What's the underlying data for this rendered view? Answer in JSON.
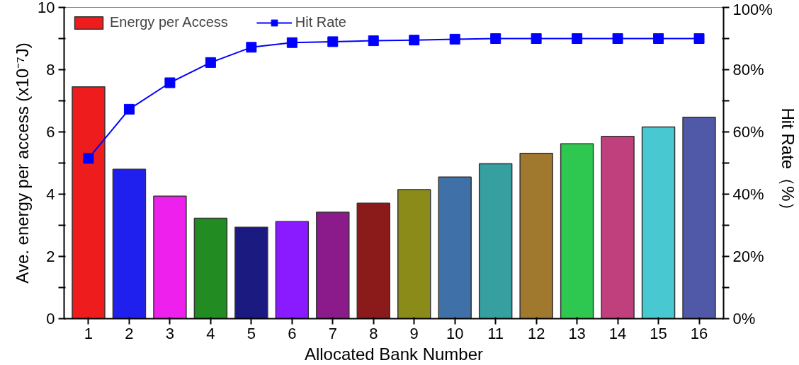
{
  "chart_data": {
    "type": "bar",
    "x": [
      1,
      2,
      3,
      4,
      5,
      6,
      7,
      8,
      9,
      10,
      11,
      12,
      13,
      14,
      15,
      16
    ],
    "xlim": [
      0.4,
      16.6
    ],
    "xticks": [
      1,
      2,
      3,
      4,
      5,
      6,
      7,
      8,
      9,
      10,
      11,
      12,
      13,
      14,
      15,
      16
    ],
    "xlabel": "Allocated Bank Number",
    "ylabel": "Ave. energy per access (x10⁻⁷J)",
    "y2label": "Hit Rate（%）",
    "ylim": [
      0,
      10
    ],
    "yticks": [
      0,
      {
        "value": 1,
        "label": null
      },
      2,
      {
        "value": 3,
        "label": null
      },
      4,
      {
        "value": 5,
        "label": null
      },
      6,
      {
        "value": 7,
        "label": null
      },
      8,
      {
        "value": 9,
        "label": null
      },
      10
    ],
    "y2lim": [
      0,
      100
    ],
    "y2ticks": [
      {
        "value": 0,
        "label": "0%"
      },
      {
        "value": 10,
        "label": null
      },
      {
        "value": 20,
        "label": "20%"
      },
      {
        "value": 30,
        "label": null
      },
      {
        "value": 40,
        "label": "40%"
      },
      {
        "value": 50,
        "label": null
      },
      {
        "value": 60,
        "label": "60%"
      },
      {
        "value": 70,
        "label": null
      },
      {
        "value": 80,
        "label": "80%"
      },
      {
        "value": 90,
        "label": null
      },
      {
        "value": 100,
        "label": "100%"
      }
    ],
    "legend": "top left",
    "grid": false,
    "series": [
      {
        "name": "Energy per Access",
        "type": "bar",
        "colors": [
          "#ee1c1c",
          "#2020ee",
          "#ee20ee",
          "#228b22",
          "#1a1a80",
          "#8a1aff",
          "#8b1a8b",
          "#8b1a1a",
          "#8b8b1a",
          "#4070a8",
          "#36a0a0",
          "#a0782e",
          "#2ec850",
          "#c0407e",
          "#48c8d0",
          "#5058a8"
        ],
        "values": [
          7.45,
          4.8,
          3.94,
          3.23,
          2.94,
          3.12,
          3.42,
          3.71,
          4.15,
          4.55,
          4.98,
          5.31,
          5.62,
          5.86,
          6.16,
          6.47
        ]
      },
      {
        "name": "Hit Rate",
        "type": "line",
        "axis": "y2",
        "color": "#0000ff",
        "marker": "square",
        "values": [
          51.5,
          67.3,
          75.8,
          82.3,
          87.2,
          88.7,
          89,
          89.3,
          89.5,
          89.8,
          90,
          90,
          90,
          90,
          90,
          90
        ]
      }
    ]
  }
}
